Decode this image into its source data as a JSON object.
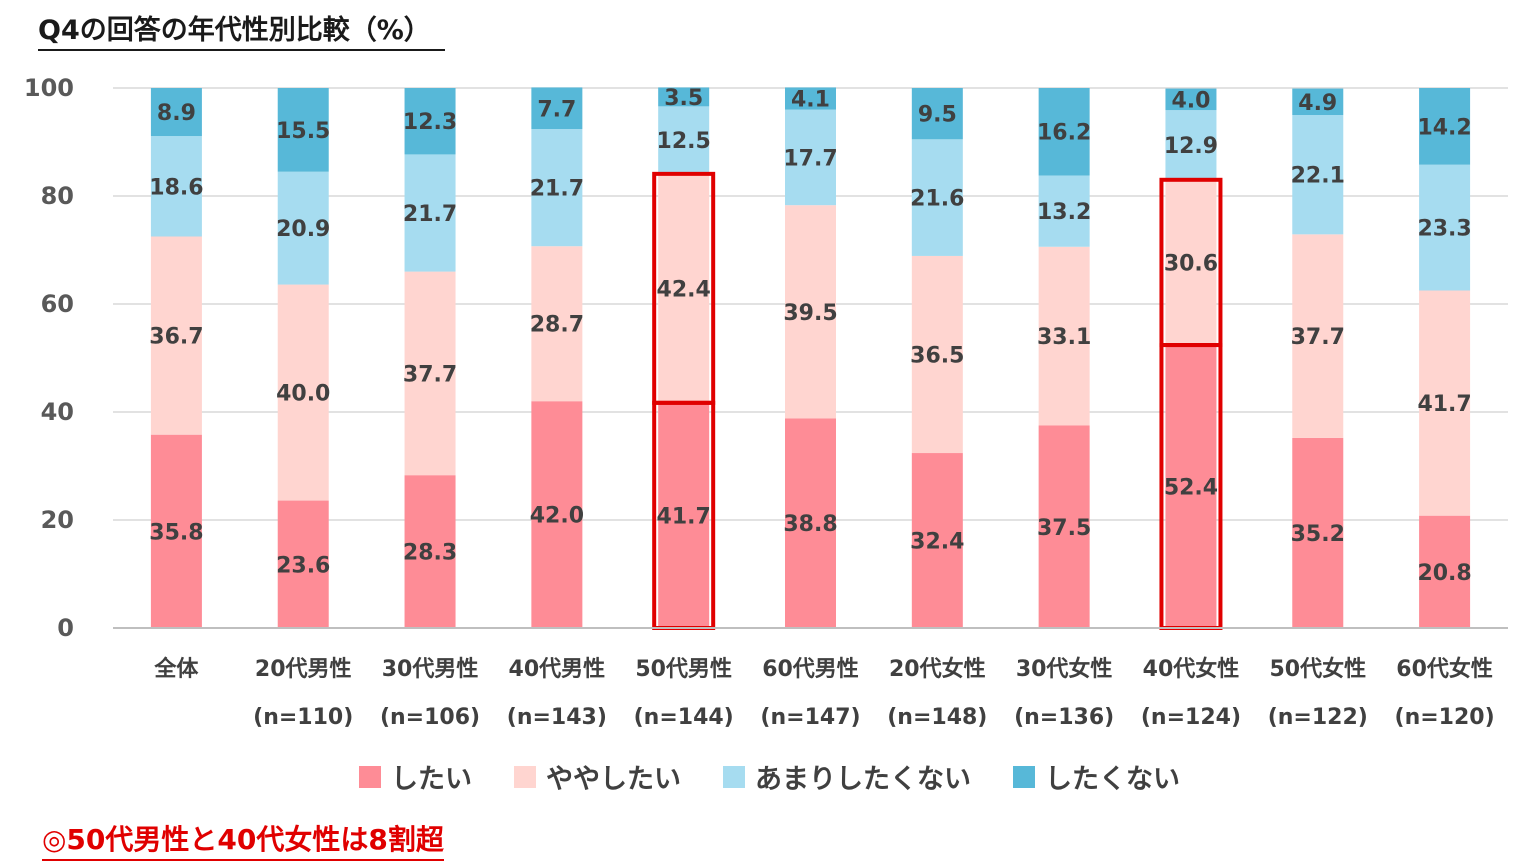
{
  "chart_data": {
    "type": "bar",
    "stacked": true,
    "title": "Q4の回答の年代性別比較（%）",
    "ylim": [
      0,
      100
    ],
    "yticks": [
      0,
      20,
      40,
      60,
      80,
      100
    ],
    "grid": true,
    "categories": [
      "全体",
      "20代男性",
      "30代男性",
      "40代男性",
      "50代男性",
      "60代男性",
      "20代女性",
      "30代女性",
      "40代女性",
      "50代女性",
      "60代女性"
    ],
    "sample_sizes": [
      "",
      "(n=110)",
      "(n=106)",
      "(n=143)",
      "(n=144)",
      "(n=147)",
      "(n=148)",
      "(n=136)",
      "(n=124)",
      "(n=122)",
      "(n=120)"
    ],
    "series": [
      {
        "name": "したい",
        "color": "#fe8c96",
        "values": [
          35.8,
          23.6,
          28.3,
          42.0,
          41.7,
          38.8,
          32.4,
          37.5,
          52.4,
          35.2,
          20.8
        ]
      },
      {
        "name": "ややしたい",
        "color": "#ffd5d0",
        "values": [
          36.7,
          40.0,
          37.7,
          28.7,
          42.4,
          39.5,
          36.5,
          33.1,
          30.6,
          37.7,
          41.7
        ]
      },
      {
        "name": "あまりしたくない",
        "color": "#a6dcf0",
        "values": [
          18.6,
          20.9,
          21.7,
          21.7,
          12.5,
          17.7,
          21.6,
          13.2,
          12.9,
          22.1,
          23.3
        ]
      },
      {
        "name": "したくない",
        "color": "#57b8d8",
        "values": [
          8.9,
          15.5,
          12.3,
          7.7,
          3.5,
          4.1,
          9.5,
          16.2,
          4.0,
          4.9,
          14.2
        ]
      }
    ],
    "highlighted_categories": [
      "50代男性",
      "40代女性"
    ],
    "highlight_color": "#e00000",
    "legend_position": "bottom"
  },
  "note": "◎50代男性と40代女性は8割超"
}
